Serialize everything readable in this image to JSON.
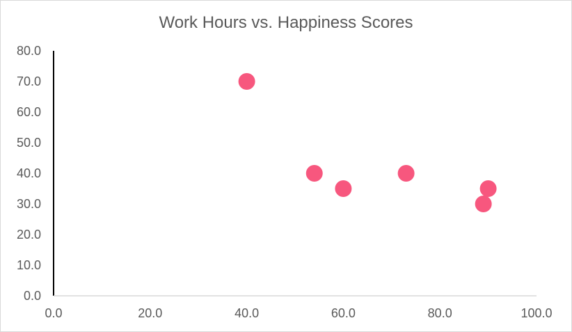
{
  "chart_data": {
    "type": "scatter",
    "title": "Work Hours vs. Happiness Scores",
    "xlabel": "",
    "ylabel": "",
    "xlim": [
      0,
      100
    ],
    "ylim": [
      0,
      80
    ],
    "x_ticks": [
      "0.0",
      "20.0",
      "40.0",
      "60.0",
      "80.0",
      "100.0"
    ],
    "y_ticks": [
      "0.0",
      "10.0",
      "20.0",
      "30.0",
      "40.0",
      "50.0",
      "60.0",
      "70.0",
      "80.0"
    ],
    "grid": false,
    "legend": "none",
    "series": [
      {
        "color": "#f7577e",
        "points": [
          {
            "x": 40,
            "y": 70
          },
          {
            "x": 54,
            "y": 40
          },
          {
            "x": 60,
            "y": 35
          },
          {
            "x": 73,
            "y": 40
          },
          {
            "x": 89,
            "y": 30
          },
          {
            "x": 90,
            "y": 35
          }
        ]
      }
    ]
  }
}
